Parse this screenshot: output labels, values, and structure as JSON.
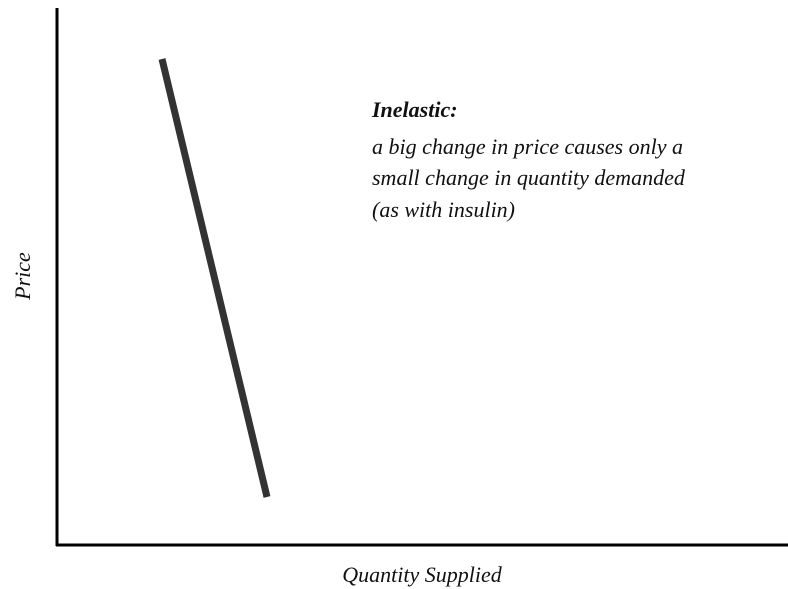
{
  "axes": {
    "y_label": "Price",
    "x_label": "Quantity Supplied"
  },
  "annotation": {
    "title": "Inelastic:",
    "lines": [
      "a big change in price causes only a",
      "small change in quantity demanded",
      "(as with insulin)"
    ]
  }
}
